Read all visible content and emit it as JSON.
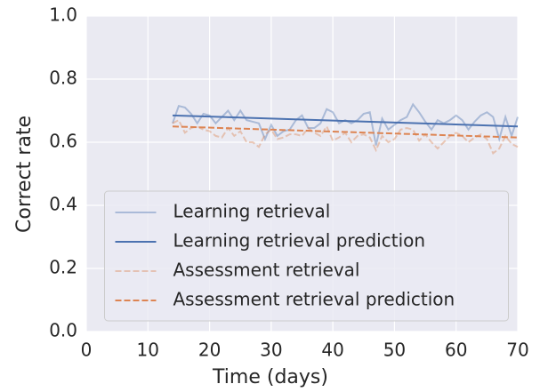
{
  "chart_data": {
    "type": "line",
    "xlabel": "Time (days)",
    "ylabel": "Correct rate",
    "xlim": [
      0,
      70
    ],
    "ylim": [
      0,
      1
    ],
    "xticks": [
      0,
      10,
      20,
      30,
      40,
      50,
      60,
      70
    ],
    "yticks": [
      {
        "value": 0,
        "label": "0.0"
      },
      0.2,
      0.4,
      0.6,
      0.8,
      {
        "value": 1,
        "label": "1.0"
      }
    ],
    "grid": true,
    "legend": "lower center",
    "series": [
      {
        "name": "Learning retrieval",
        "color": "#4c72b0",
        "alpha": 0.4,
        "linestyle": "solid",
        "x": [
          14,
          15,
          16,
          17,
          18,
          19,
          20,
          21,
          22,
          23,
          24,
          25,
          26,
          27,
          28,
          29,
          30,
          31,
          32,
          33,
          34,
          35,
          36,
          37,
          38,
          39,
          40,
          41,
          42,
          43,
          44,
          45,
          46,
          47,
          48,
          49,
          50,
          51,
          52,
          53,
          54,
          55,
          56,
          57,
          58,
          59,
          60,
          61,
          62,
          63,
          64,
          65,
          66,
          67,
          68,
          69,
          70
        ],
        "values": [
          0.66,
          0.715,
          0.71,
          0.69,
          0.66,
          0.69,
          0.685,
          0.66,
          0.68,
          0.7,
          0.67,
          0.7,
          0.67,
          0.665,
          0.66,
          0.61,
          0.655,
          0.62,
          0.635,
          0.64,
          0.67,
          0.685,
          0.645,
          0.645,
          0.66,
          0.705,
          0.695,
          0.66,
          0.67,
          0.66,
          0.67,
          0.69,
          0.695,
          0.59,
          0.675,
          0.64,
          0.655,
          0.67,
          0.68,
          0.72,
          0.695,
          0.665,
          0.64,
          0.67,
          0.66,
          0.67,
          0.685,
          0.67,
          0.64,
          0.665,
          0.685,
          0.695,
          0.68,
          0.61,
          0.68,
          0.62,
          0.68
        ]
      },
      {
        "name": "Learning retrieval prediction",
        "color": "#4c72b0",
        "alpha": 1,
        "linestyle": "solid",
        "x": [
          14,
          70
        ],
        "values": [
          0.685,
          0.65
        ]
      },
      {
        "name": "Assessment retrieval",
        "color": "#dd8452",
        "alpha": 0.4,
        "linestyle": "dashed",
        "x": [
          14,
          15,
          16,
          17,
          18,
          19,
          20,
          21,
          22,
          23,
          24,
          25,
          26,
          27,
          28,
          29,
          30,
          31,
          32,
          33,
          34,
          35,
          36,
          37,
          38,
          39,
          40,
          41,
          42,
          43,
          44,
          45,
          46,
          47,
          48,
          49,
          50,
          51,
          52,
          53,
          54,
          55,
          56,
          57,
          58,
          59,
          60,
          61,
          62,
          63,
          64,
          65,
          66,
          67,
          68,
          69,
          70
        ],
        "values": [
          0.66,
          0.67,
          0.63,
          0.645,
          0.65,
          0.64,
          0.635,
          0.62,
          0.615,
          0.645,
          0.62,
          0.635,
          0.6,
          0.6,
          0.585,
          0.625,
          0.64,
          0.61,
          0.615,
          0.625,
          0.625,
          0.62,
          0.645,
          0.63,
          0.62,
          0.65,
          0.605,
          0.615,
          0.63,
          0.6,
          0.62,
          0.625,
          0.615,
          0.575,
          0.62,
          0.6,
          0.61,
          0.64,
          0.645,
          0.64,
          0.605,
          0.625,
          0.6,
          0.58,
          0.6,
          0.62,
          0.63,
          0.62,
          0.6,
          0.615,
          0.625,
          0.61,
          0.565,
          0.58,
          0.62,
          0.595,
          0.585
        ]
      },
      {
        "name": "Assessment retrieval prediction",
        "color": "#dd8452",
        "alpha": 1,
        "linestyle": "dashed",
        "x": [
          14,
          70
        ],
        "values": [
          0.65,
          0.615
        ]
      }
    ]
  }
}
